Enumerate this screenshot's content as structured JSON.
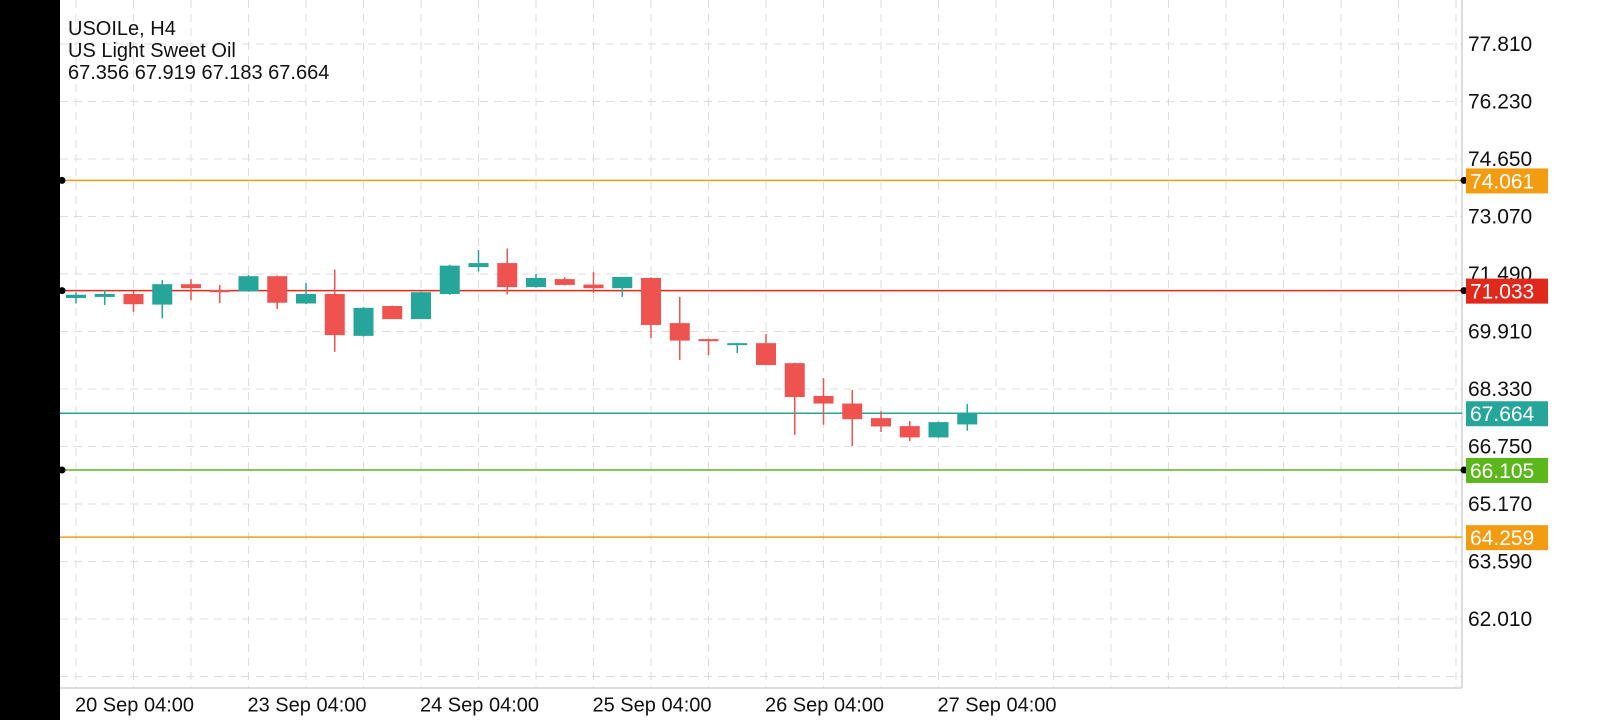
{
  "header": {
    "symbol_timeframe": "USOILe, H4",
    "description": "US Light Sweet Oil",
    "ohlc": "67.356 67.919 67.183 67.664"
  },
  "colors": {
    "up": "#26a69a",
    "down": "#ef5350",
    "grid": "#dcdcdc"
  },
  "chart_data": {
    "type": "candlestick",
    "title": "USOILe, H4",
    "ylim": [
      60.6,
      79.0
    ],
    "y_ticks": [
      "77.810",
      "76.230",
      "74.650",
      "73.070",
      "71.490",
      "69.910",
      "68.330",
      "66.750",
      "65.170",
      "63.590",
      "62.010"
    ],
    "x_labels": [
      "20 Sep 04:00",
      "23 Sep 04:00",
      "24 Sep 04:00",
      "25 Sep 04:00",
      "26 Sep 04:00",
      "27 Sep 04:00"
    ],
    "candles_per_label": 6,
    "candles": [
      [
        70.83,
        70.99,
        70.68,
        70.92
      ],
      [
        70.86,
        71.05,
        70.64,
        70.94
      ],
      [
        70.94,
        71.03,
        70.45,
        70.66
      ],
      [
        70.65,
        71.32,
        70.27,
        71.21
      ],
      [
        71.21,
        71.35,
        70.77,
        71.1
      ],
      [
        71.05,
        71.19,
        70.69,
        70.99
      ],
      [
        71.01,
        71.46,
        71.0,
        71.43
      ],
      [
        71.43,
        71.45,
        70.53,
        70.7
      ],
      [
        70.68,
        71.24,
        70.66,
        70.94
      ],
      [
        70.94,
        71.61,
        69.35,
        69.81
      ],
      [
        69.79,
        70.58,
        69.77,
        70.56
      ],
      [
        70.61,
        70.62,
        70.25,
        70.25
      ],
      [
        70.25,
        71.0,
        70.25,
        70.99
      ],
      [
        70.94,
        71.74,
        70.92,
        71.72
      ],
      [
        71.68,
        72.15,
        71.56,
        71.79
      ],
      [
        71.79,
        72.19,
        70.93,
        71.13
      ],
      [
        71.13,
        71.49,
        71.12,
        71.38
      ],
      [
        71.35,
        71.4,
        71.18,
        71.19
      ],
      [
        71.2,
        71.54,
        70.97,
        71.1
      ],
      [
        71.1,
        71.41,
        70.86,
        71.41
      ],
      [
        71.38,
        71.4,
        69.73,
        70.09
      ],
      [
        70.14,
        70.86,
        69.13,
        69.66
      ],
      [
        69.7,
        69.71,
        69.26,
        69.65
      ],
      [
        69.54,
        69.6,
        69.32,
        69.59
      ],
      [
        69.59,
        69.84,
        68.99,
        68.99
      ],
      [
        69.04,
        69.05,
        67.07,
        68.11
      ],
      [
        68.14,
        68.63,
        67.35,
        67.93
      ],
      [
        67.93,
        68.3,
        66.76,
        67.5
      ],
      [
        67.53,
        67.72,
        67.15,
        67.3
      ],
      [
        67.31,
        67.45,
        66.9,
        67.0
      ],
      [
        67.0,
        67.43,
        66.99,
        67.42
      ],
      [
        67.356,
        67.919,
        67.183,
        67.664
      ]
    ],
    "levels": [
      {
        "price": 74.061,
        "label": "74.061",
        "color": "#f39c12",
        "dot": true
      },
      {
        "price": 71.033,
        "label": "71.033",
        "color": "#e0281b",
        "dot": true
      },
      {
        "price": 67.664,
        "label": "67.664",
        "color": "#26a69a",
        "dot": false
      },
      {
        "price": 66.105,
        "label": "66.105",
        "color": "#5cb71c",
        "dot": true
      },
      {
        "price": 64.259,
        "label": "64.259",
        "color": "#f39c12",
        "dot": false
      }
    ]
  }
}
